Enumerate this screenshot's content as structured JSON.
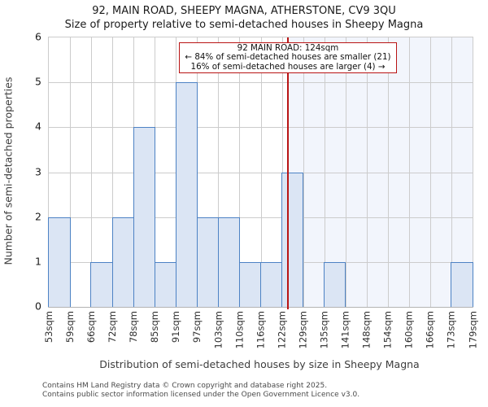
{
  "title": {
    "line1": "92, MAIN ROAD, SHEEPY MAGNA, ATHERSTONE, CV9 3QU",
    "line2": "Size of property relative to semi-detached houses in Sheepy Magna"
  },
  "annotation": {
    "line1": "92 MAIN ROAD: 124sqm",
    "line2": "← 84% of semi-detached houses are smaller (21)",
    "line3": "16% of semi-detached houses are larger (4) →"
  },
  "chart_data": {
    "type": "bar",
    "title": "92, MAIN ROAD, SHEEPY MAGNA, ATHERSTONE, CV9 3QU — Size of property relative to semi-detached houses in Sheepy Magna",
    "xlabel": "Distribution of semi-detached houses by size in Sheepy Magna",
    "ylabel": "Number of semi-detached properties",
    "bin_edges_sqm": [
      53,
      59,
      66,
      72,
      78,
      85,
      91,
      97,
      103,
      110,
      116,
      122,
      129,
      135,
      141,
      148,
      154,
      160,
      166,
      173,
      179
    ],
    "x_tick_labels": [
      "53sqm",
      "59sqm",
      "66sqm",
      "72sqm",
      "78sqm",
      "85sqm",
      "91sqm",
      "97sqm",
      "103sqm",
      "110sqm",
      "116sqm",
      "122sqm",
      "129sqm",
      "135sqm",
      "141sqm",
      "148sqm",
      "154sqm",
      "160sqm",
      "166sqm",
      "173sqm",
      "179sqm"
    ],
    "values": [
      2,
      0,
      1,
      2,
      4,
      1,
      5,
      2,
      2,
      1,
      1,
      3,
      0,
      1,
      0,
      0,
      0,
      0,
      0,
      1
    ],
    "y_ticks": [
      0,
      1,
      2,
      3,
      4,
      5,
      6
    ],
    "ylim": [
      0,
      6
    ],
    "grid": true,
    "marker": {
      "label": "92 MAIN ROAD",
      "sqm": 124,
      "smaller_pct": 84,
      "smaller_count": 21,
      "larger_pct": 16,
      "larger_count": 4
    }
  },
  "footer": {
    "line1": "Contains HM Land Registry data © Crown copyright and database right 2025.",
    "line2": "Contains public sector information licensed under the Open Government Licence v3.0."
  },
  "colors": {
    "bar_fill": "#dbe5f4",
    "bar_edge": "#4d82c4",
    "grid": "#cccccc",
    "shade": "#f2f5fc",
    "marker": "#b91414"
  }
}
